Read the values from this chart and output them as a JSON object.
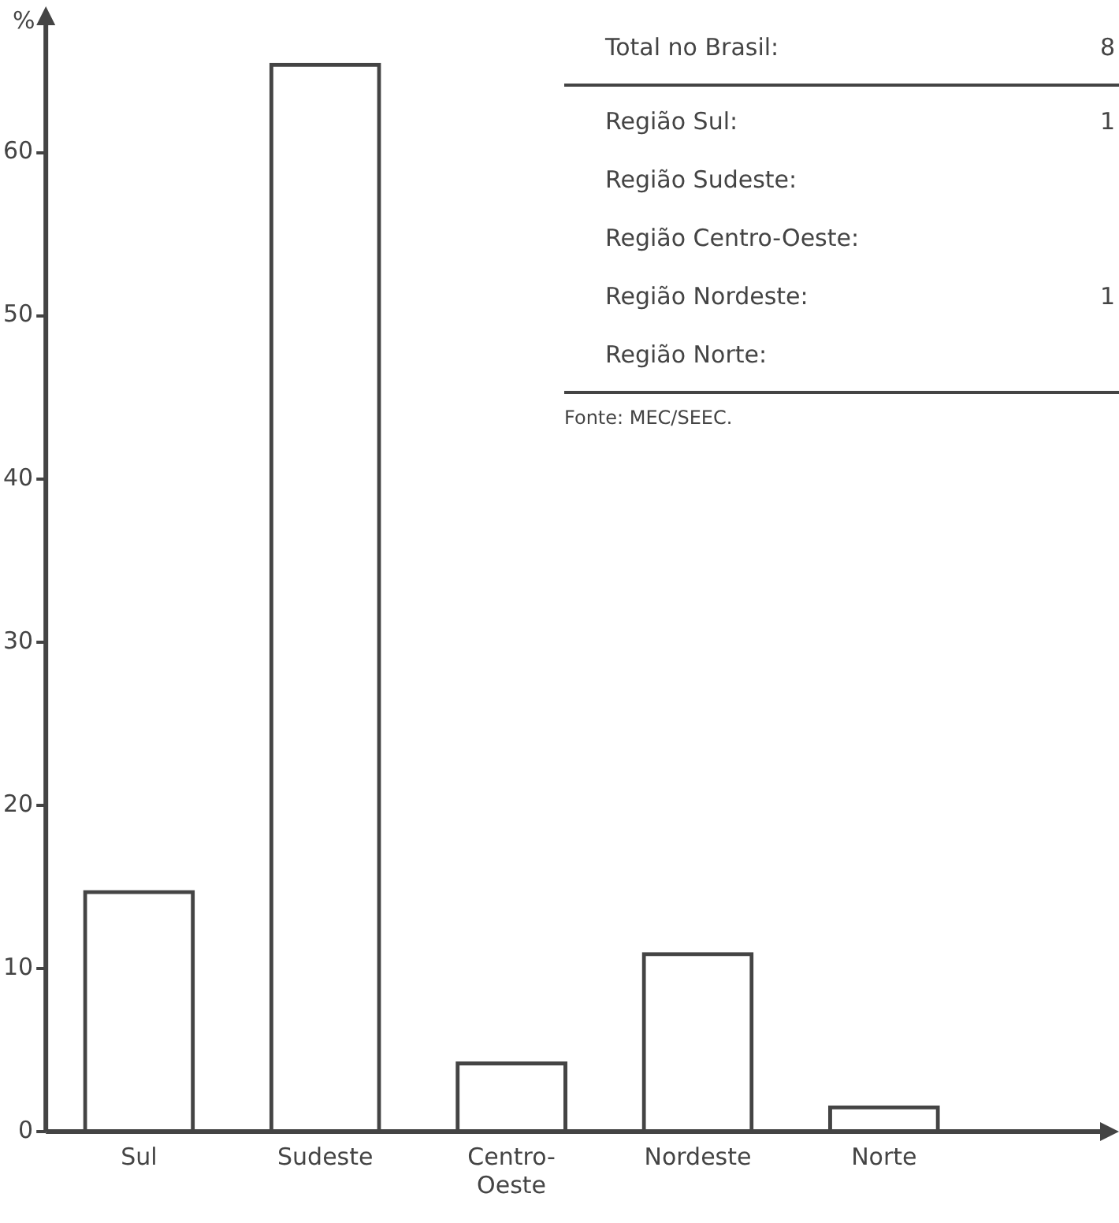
{
  "chart_data": {
    "type": "bar",
    "ylabel": "%",
    "categories": [
      "Sul",
      "Sudeste",
      "Centro-Oeste",
      "Nordeste",
      "Norte"
    ],
    "values": [
      14.8,
      65.5,
      4.3,
      11,
      1.6
    ],
    "color": "#444444",
    "ylim": [
      0,
      68
    ],
    "yticks": [
      0,
      10,
      20,
      30,
      40,
      50,
      60
    ],
    "grid": false,
    "legend": false,
    "annotations": [
      "Total no Brasil:\t8",
      "Região Sul:\t1",
      "Região Sudeste:",
      "Região Centro-Oeste:",
      "Região Nordeste:\t1",
      "Região Norte:",
      "Fonte: MEC/SEEC."
    ]
  }
}
